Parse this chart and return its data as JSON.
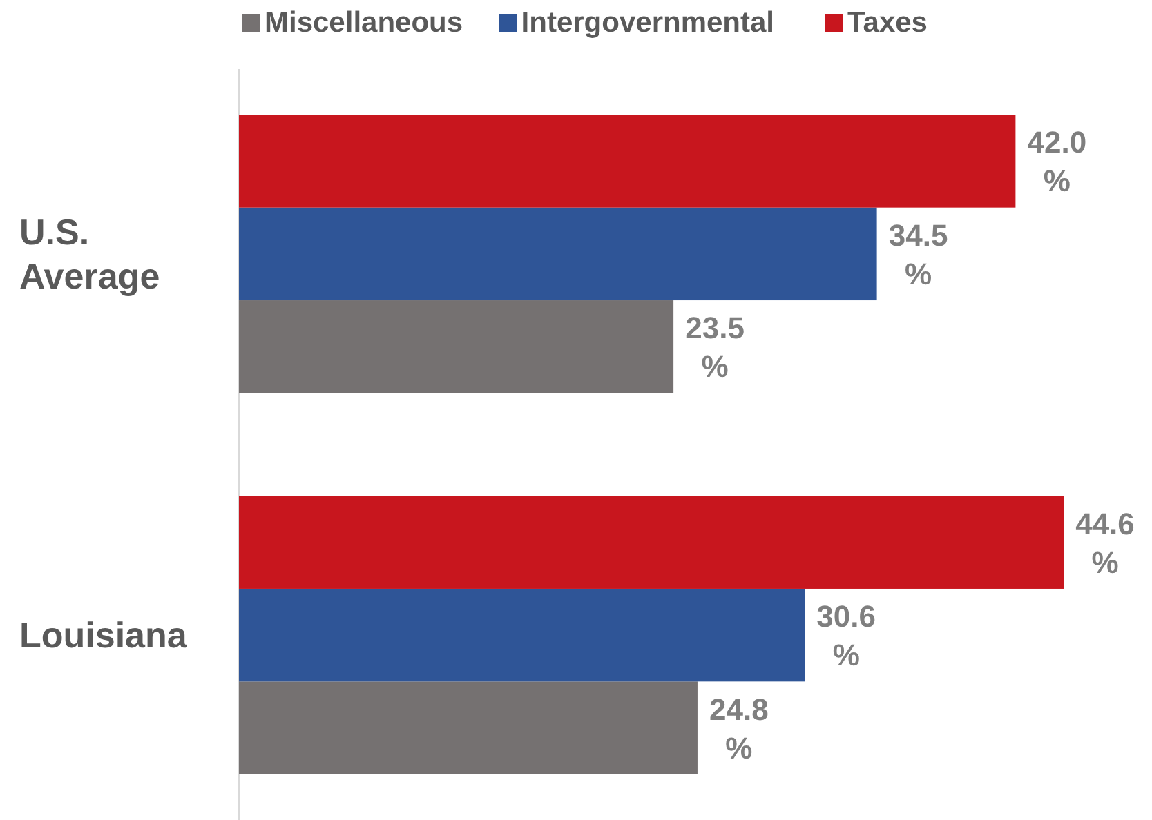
{
  "chart_data": {
    "type": "bar",
    "orientation": "horizontal",
    "categories": [
      "U.S. Average",
      "Louisiana"
    ],
    "series": [
      {
        "name": "Miscellaneous",
        "color": "#757171",
        "values": [
          23.5,
          24.8
        ],
        "value_labels": [
          "23.5%",
          "24.8%"
        ]
      },
      {
        "name": "Intergovernmental",
        "color": "#2f5597",
        "values": [
          34.5,
          30.6
        ],
        "value_labels": [
          "34.5%",
          "30.6%"
        ]
      },
      {
        "name": "Taxes",
        "color": "#c8161e",
        "values": [
          42.0,
          44.6
        ],
        "value_labels": [
          "42.0%",
          "44.6%"
        ]
      }
    ],
    "legend": "top"
  }
}
